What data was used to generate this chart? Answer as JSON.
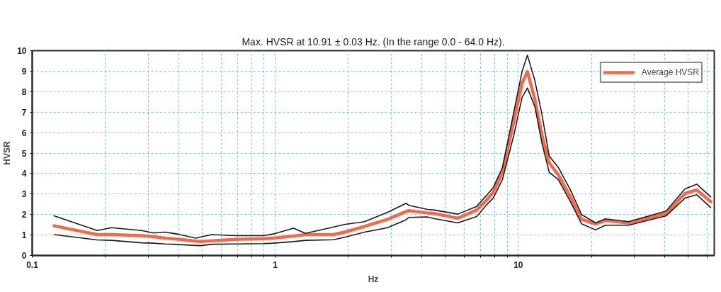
{
  "chart_data": {
    "type": "line",
    "title": "Max. HVSR at 10.91 ± 0.03 Hz. (In the range 0.0 - 64.0 Hz).",
    "xlabel": "Hz",
    "ylabel": "HVSR",
    "x": [
      0.123,
      0.185,
      0.212,
      0.282,
      0.316,
      0.352,
      0.394,
      0.471,
      0.491,
      0.549,
      0.684,
      0.895,
      0.98,
      1.19,
      1.33,
      1.74,
      1.94,
      2.33,
      2.9,
      3.46,
      3.54,
      4.23,
      4.52,
      5.64,
      6.74,
      7.37,
      7.88,
      8.6,
      9.59,
      10.36,
      10.9,
      11.7,
      12.5,
      13.4,
      14.6,
      16.3,
      18.2,
      20.8,
      22.8,
      28.4,
      40.6,
      48.5,
      54.2,
      61.9
    ],
    "series": [
      {
        "name": "Average HVSR",
        "color": "#f26a4b",
        "values": [
          1.45,
          1.02,
          1.02,
          0.97,
          0.92,
          0.85,
          0.8,
          0.7,
          0.68,
          0.72,
          0.79,
          0.82,
          0.85,
          0.95,
          1.02,
          1.02,
          1.15,
          1.42,
          1.77,
          2.15,
          2.19,
          2.08,
          2.05,
          1.82,
          2.22,
          2.68,
          3.08,
          4.06,
          6.58,
          8.41,
          8.98,
          7.61,
          5.89,
          4.52,
          3.94,
          2.91,
          1.77,
          1.54,
          1.71,
          1.59,
          2.05,
          3.03,
          3.2,
          2.63
        ]
      },
      {
        "color": "#1a1a1a",
        "values": [
          1.94,
          1.22,
          1.36,
          1.22,
          1.1,
          1.14,
          1.05,
          0.85,
          0.9,
          1.02,
          0.97,
          0.97,
          1.05,
          1.33,
          1.08,
          1.39,
          1.52,
          1.65,
          2.11,
          2.55,
          2.45,
          2.25,
          2.22,
          2.02,
          2.4,
          2.91,
          3.31,
          4.29,
          7.03,
          8.98,
          9.78,
          8.53,
          6.9,
          4.86,
          4.3,
          3.25,
          2.0,
          1.59,
          1.79,
          1.65,
          2.17,
          3.25,
          3.48,
          2.86
        ]
      },
      {
        "color": "#1a1a1a",
        "values": [
          1.02,
          0.76,
          0.74,
          0.62,
          0.6,
          0.56,
          0.54,
          0.49,
          0.48,
          0.55,
          0.56,
          0.58,
          0.6,
          0.68,
          0.74,
          0.77,
          0.9,
          1.14,
          1.36,
          1.75,
          1.86,
          1.88,
          1.8,
          1.59,
          1.9,
          2.45,
          2.8,
          3.71,
          5.89,
          7.72,
          8.18,
          7.26,
          5.5,
          4.06,
          3.71,
          2.68,
          1.55,
          1.25,
          1.48,
          1.48,
          1.94,
          2.8,
          2.97,
          2.34
        ]
      }
    ],
    "xlim": [
      0.1,
      64
    ],
    "ylim": [
      0,
      10
    ],
    "xticks": [
      0.1,
      {
        "value": 0.2,
        "label": null
      },
      {
        "value": 0.3,
        "label": null
      },
      {
        "value": 0.4,
        "label": null
      },
      {
        "value": 0.5,
        "label": null
      },
      {
        "value": 0.6,
        "label": null
      },
      {
        "value": 0.7,
        "label": null
      },
      {
        "value": 0.8,
        "label": null
      },
      {
        "value": 0.9,
        "label": null
      },
      1,
      {
        "value": 2,
        "label": null
      },
      {
        "value": 3,
        "label": null
      },
      {
        "value": 4,
        "label": null
      },
      {
        "value": 5,
        "label": null
      },
      {
        "value": 6,
        "label": null
      },
      {
        "value": 7,
        "label": null
      },
      {
        "value": 8,
        "label": null
      },
      {
        "value": 9,
        "label": null
      },
      10,
      {
        "value": 20,
        "label": null
      },
      {
        "value": 30,
        "label": null
      },
      {
        "value": 40,
        "label": null
      },
      {
        "value": 50,
        "label": null
      },
      {
        "value": 60,
        "label": null
      }
    ],
    "yticks": [
      0,
      1,
      2,
      3,
      4,
      5,
      6,
      7,
      8,
      9,
      10
    ],
    "log": "x",
    "grid": true,
    "legend": "top right",
    "line_style": "solid"
  }
}
